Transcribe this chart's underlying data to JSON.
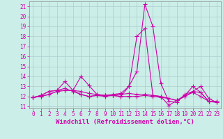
{
  "xlabel": "Windchill (Refroidissement éolien,°C)",
  "xlim": [
    -0.5,
    23.5
  ],
  "ylim": [
    10.8,
    21.5
  ],
  "yticks": [
    11,
    12,
    13,
    14,
    15,
    16,
    17,
    18,
    19,
    20,
    21
  ],
  "xticks": [
    0,
    1,
    2,
    3,
    4,
    5,
    6,
    7,
    8,
    9,
    10,
    11,
    12,
    13,
    14,
    15,
    16,
    17,
    18,
    19,
    20,
    21,
    22,
    23
  ],
  "bg_color": "#cceee8",
  "grid_color": "#aacccc",
  "line_color": "#cc00aa",
  "lines": [
    [
      11.9,
      12.0,
      12.2,
      12.5,
      12.6,
      12.6,
      14.0,
      13.1,
      12.2,
      12.1,
      12.1,
      12.0,
      13.0,
      14.5,
      21.2,
      19.0,
      13.3,
      11.5,
      11.4,
      12.2,
      12.5,
      12.4,
      11.5,
      11.5
    ],
    [
      11.9,
      12.1,
      12.5,
      12.6,
      13.5,
      12.6,
      12.2,
      12.0,
      12.1,
      12.1,
      12.2,
      12.3,
      13.0,
      18.0,
      18.8,
      12.1,
      12.0,
      11.1,
      11.6,
      12.1,
      13.0,
      12.4,
      11.5,
      11.5
    ],
    [
      11.9,
      12.1,
      12.5,
      12.6,
      12.8,
      12.5,
      12.2,
      12.0,
      12.1,
      12.0,
      12.1,
      12.2,
      12.3,
      12.2,
      12.2,
      12.1,
      12.0,
      11.8,
      11.6,
      12.0,
      12.5,
      13.0,
      11.8,
      11.4
    ],
    [
      11.9,
      12.0,
      12.2,
      12.5,
      12.6,
      12.6,
      12.5,
      12.3,
      12.2,
      12.1,
      12.1,
      12.0,
      12.0,
      12.0,
      12.1,
      12.0,
      11.9,
      11.8,
      11.6,
      12.0,
      12.4,
      12.0,
      11.5,
      11.4
    ]
  ],
  "marker": "+",
  "marker_size": 4,
  "line_width": 0.8,
  "font_size_ticks": 5.5,
  "font_size_xlabel": 6.5
}
